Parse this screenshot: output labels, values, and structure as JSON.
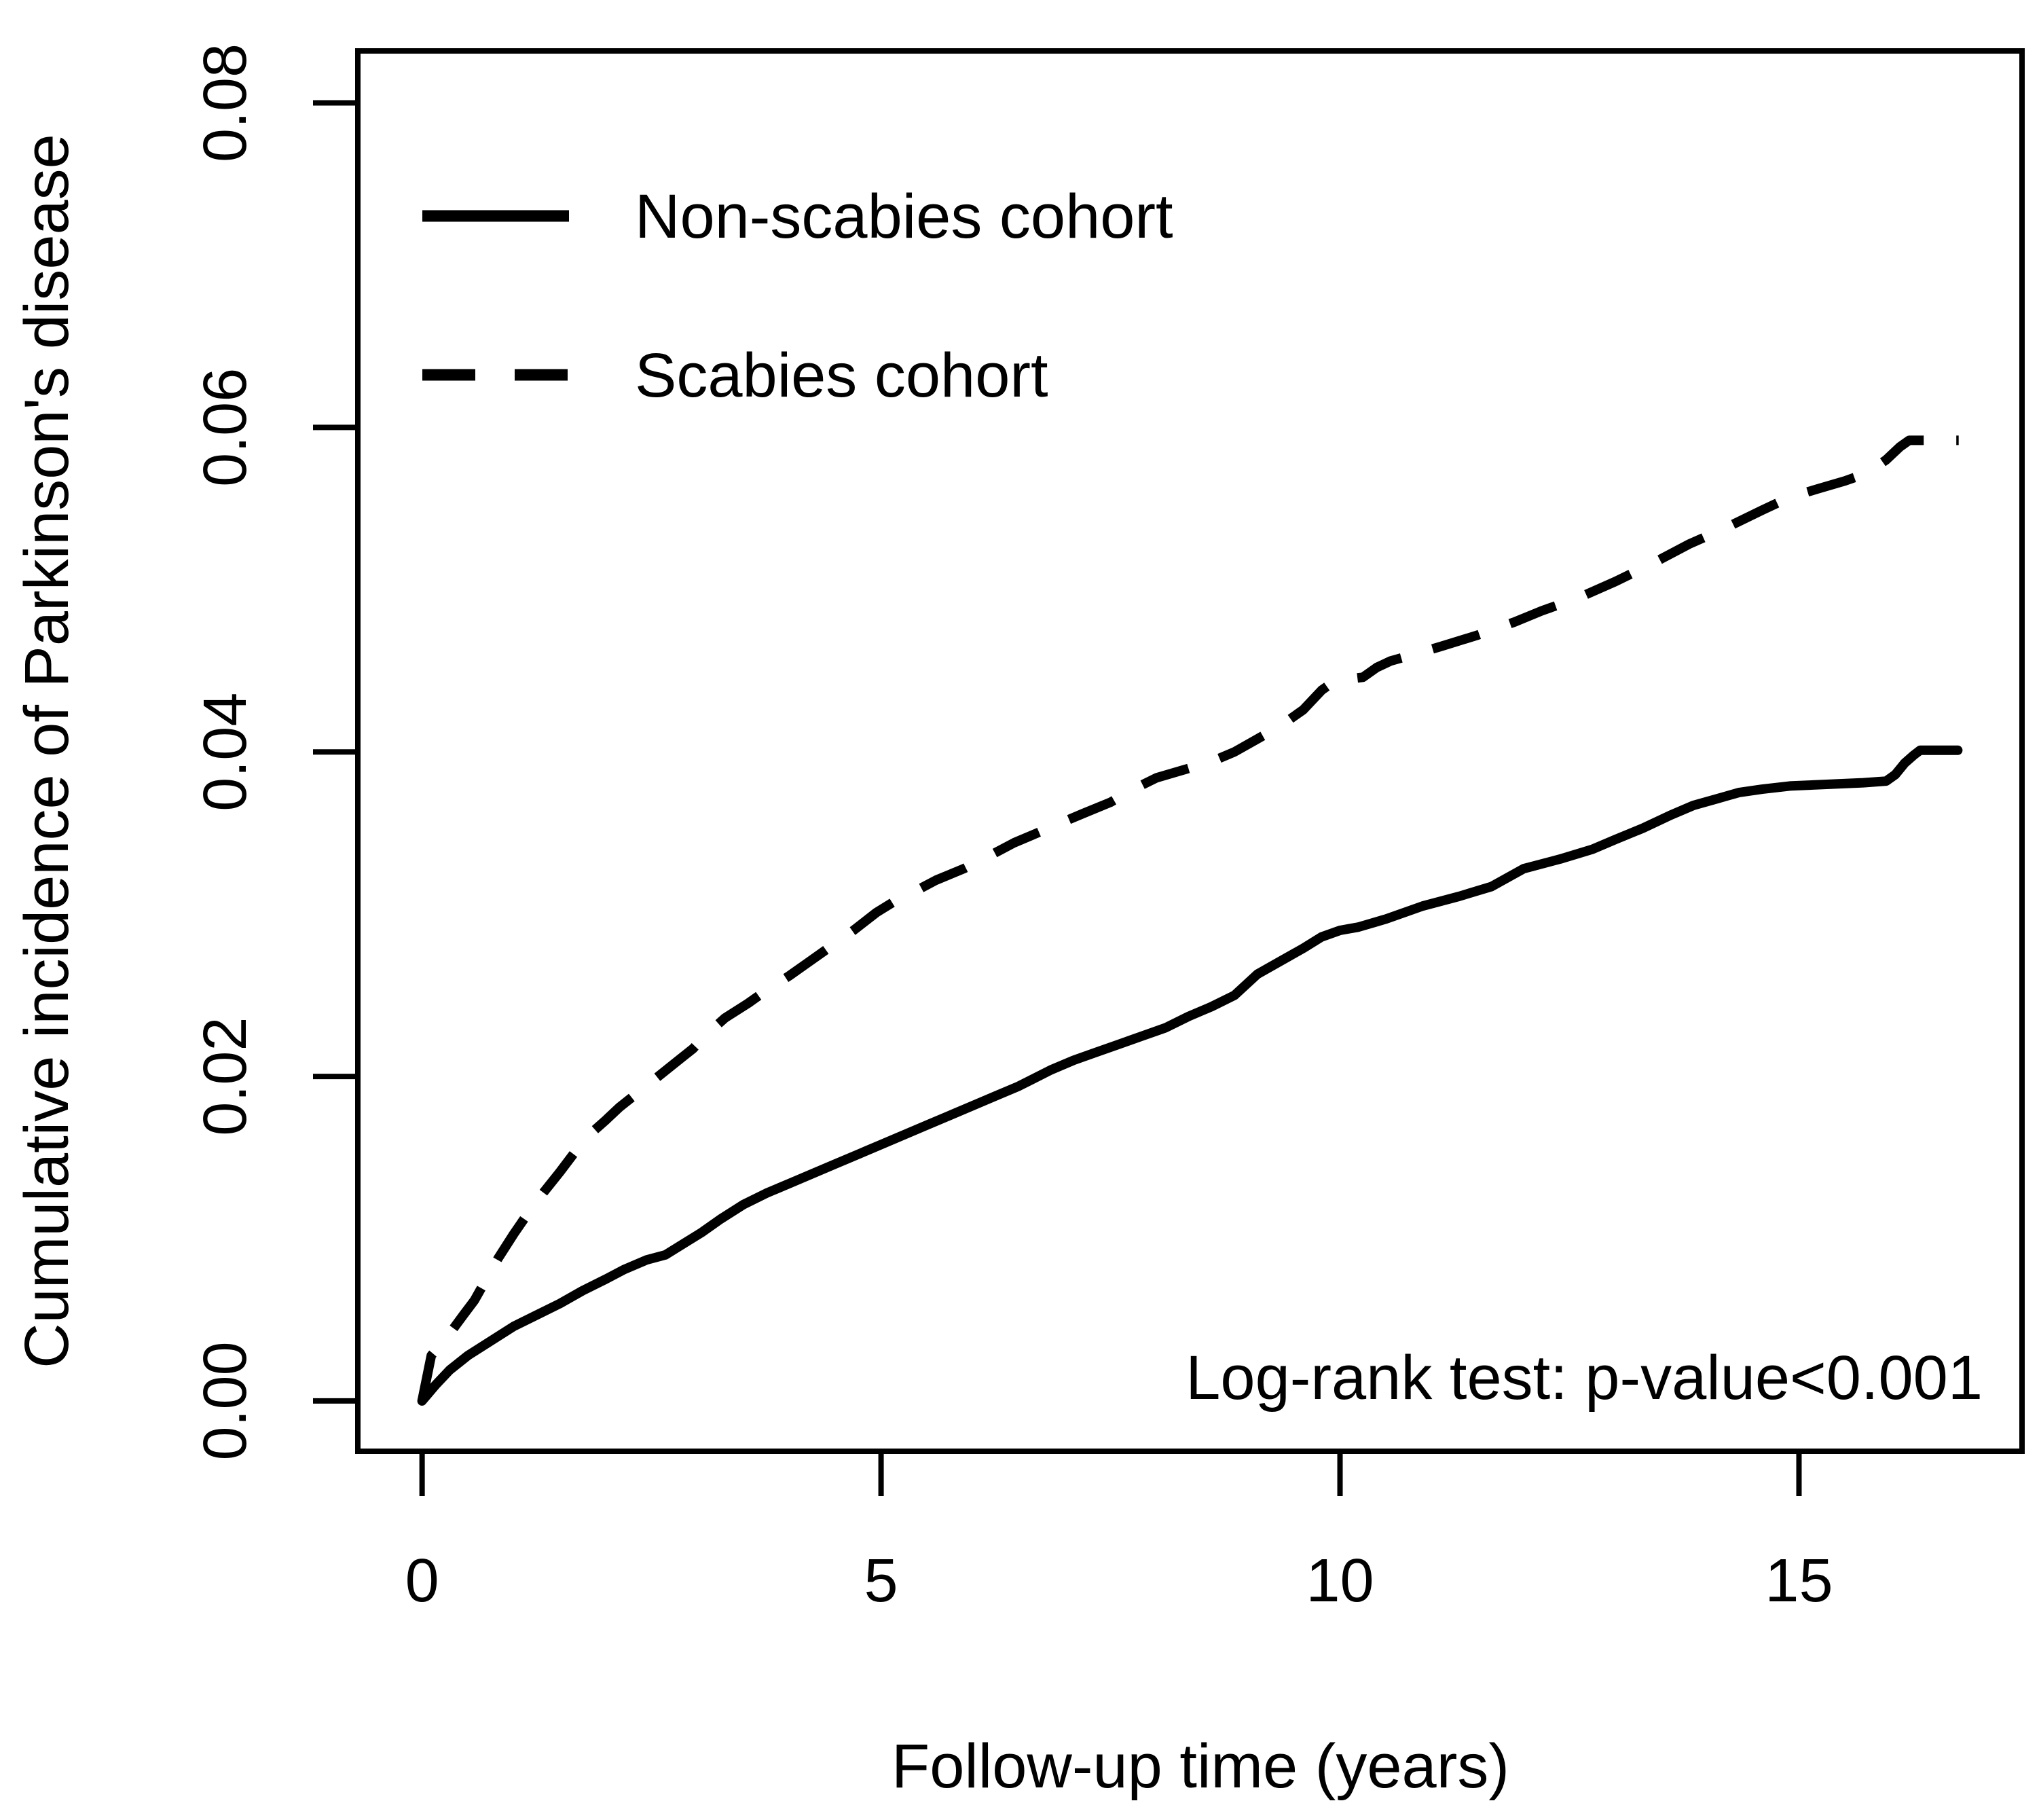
{
  "chart_data": {
    "type": "line",
    "title": "",
    "xlabel": "Follow-up time (years)",
    "ylabel": "Cumulative incidence of Parkinson's disease",
    "annotation": "Log-rank test: p-value<0.001",
    "xlim": [
      -0.7,
      17.43
    ],
    "ylim": [
      -0.0031,
      0.0832
    ],
    "x_ticks": [
      0,
      5,
      10,
      15
    ],
    "y_ticks": [
      "0.00",
      "0.02",
      "0.04",
      "0.06",
      "0.08"
    ],
    "grid": false,
    "legend_position": "top-left-inside",
    "line_color": "#000000",
    "legend": [
      {
        "label": "Non-scabies cohort",
        "style": "solid"
      },
      {
        "label": "Scabies cohort",
        "style": "dashed"
      }
    ],
    "series": [
      {
        "name": "Non-scabies cohort",
        "style": "solid",
        "points": [
          [
            0,
            0
          ],
          [
            0.15,
            0.001
          ],
          [
            0.3,
            0.0019
          ],
          [
            0.5,
            0.0028
          ],
          [
            0.75,
            0.0037
          ],
          [
            1.0,
            0.0046
          ],
          [
            1.25,
            0.0053
          ],
          [
            1.5,
            0.006
          ],
          [
            1.75,
            0.0068
          ],
          [
            2.0,
            0.0075
          ],
          [
            2.2,
            0.0081
          ],
          [
            2.45,
            0.0087
          ],
          [
            2.65,
            0.009
          ],
          [
            2.85,
            0.0097
          ],
          [
            3.05,
            0.0104
          ],
          [
            3.25,
            0.0112
          ],
          [
            3.5,
            0.0121
          ],
          [
            3.75,
            0.0128
          ],
          [
            4.0,
            0.0134
          ],
          [
            4.25,
            0.014
          ],
          [
            4.5,
            0.0146
          ],
          [
            4.75,
            0.0152
          ],
          [
            5.0,
            0.0158
          ],
          [
            5.25,
            0.0164
          ],
          [
            5.5,
            0.017
          ],
          [
            5.75,
            0.0176
          ],
          [
            6.0,
            0.0182
          ],
          [
            6.25,
            0.0188
          ],
          [
            6.5,
            0.0194
          ],
          [
            6.85,
            0.0204
          ],
          [
            7.1,
            0.021
          ],
          [
            7.35,
            0.0215
          ],
          [
            7.6,
            0.022
          ],
          [
            7.85,
            0.0225
          ],
          [
            8.1,
            0.023
          ],
          [
            8.35,
            0.0237
          ],
          [
            8.6,
            0.0243
          ],
          [
            8.85,
            0.025
          ],
          [
            9.1,
            0.0263
          ],
          [
            9.35,
            0.0271
          ],
          [
            9.6,
            0.0279
          ],
          [
            9.8,
            0.0286
          ],
          [
            10.0,
            0.029
          ],
          [
            10.2,
            0.0292
          ],
          [
            10.5,
            0.0297
          ],
          [
            10.9,
            0.0305
          ],
          [
            11.3,
            0.0311
          ],
          [
            11.65,
            0.0317
          ],
          [
            12.0,
            0.0328
          ],
          [
            12.4,
            0.0334
          ],
          [
            12.75,
            0.034
          ],
          [
            13.0,
            0.0346
          ],
          [
            13.3,
            0.0353
          ],
          [
            13.6,
            0.0361
          ],
          [
            13.85,
            0.0367
          ],
          [
            14.1,
            0.0371
          ],
          [
            14.35,
            0.0375
          ],
          [
            14.6,
            0.0377
          ],
          [
            14.9,
            0.0379
          ],
          [
            15.3,
            0.038
          ],
          [
            15.7,
            0.0381
          ],
          [
            15.95,
            0.0382
          ],
          [
            16.05,
            0.0386
          ],
          [
            16.15,
            0.0393
          ],
          [
            16.25,
            0.0398
          ],
          [
            16.32,
            0.0401
          ],
          [
            16.73,
            0.0401
          ]
        ]
      },
      {
        "name": "Scabies cohort",
        "style": "dashed",
        "points": [
          [
            0,
            0
          ],
          [
            0.1,
            0.0028
          ],
          [
            0.22,
            0.0036
          ],
          [
            0.32,
            0.0043
          ],
          [
            0.45,
            0.0053
          ],
          [
            0.57,
            0.0062
          ],
          [
            0.7,
            0.0075
          ],
          [
            0.83,
            0.0088
          ],
          [
            1.0,
            0.0103
          ],
          [
            1.17,
            0.0117
          ],
          [
            1.33,
            0.0129
          ],
          [
            1.5,
            0.0141
          ],
          [
            1.66,
            0.0153
          ],
          [
            1.82,
            0.0164
          ],
          [
            2.0,
            0.0173
          ],
          [
            2.15,
            0.0181
          ],
          [
            2.35,
            0.019
          ],
          [
            2.55,
            0.0199
          ],
          [
            2.75,
            0.0208
          ],
          [
            2.95,
            0.0217
          ],
          [
            3.1,
            0.0226
          ],
          [
            3.3,
            0.0236
          ],
          [
            3.55,
            0.0245
          ],
          [
            3.75,
            0.0253
          ],
          [
            4.0,
            0.0262
          ],
          [
            4.2,
            0.027
          ],
          [
            4.45,
            0.028
          ],
          [
            4.7,
            0.029
          ],
          [
            4.95,
            0.0301
          ],
          [
            5.15,
            0.0308
          ],
          [
            5.4,
            0.0315
          ],
          [
            5.6,
            0.0321
          ],
          [
            5.9,
            0.0328
          ],
          [
            6.15,
            0.0335
          ],
          [
            6.45,
            0.0344
          ],
          [
            6.7,
            0.035
          ],
          [
            6.95,
            0.0356
          ],
          [
            7.2,
            0.0362
          ],
          [
            7.5,
            0.0369
          ],
          [
            7.75,
            0.0377
          ],
          [
            8.0,
            0.0384
          ],
          [
            8.3,
            0.0389
          ],
          [
            8.6,
            0.0394
          ],
          [
            8.85,
            0.04
          ],
          [
            9.1,
            0.0408
          ],
          [
            9.35,
            0.0416
          ],
          [
            9.6,
            0.0426
          ],
          [
            9.8,
            0.0438
          ],
          [
            9.95,
            0.0444
          ],
          [
            10.25,
            0.0446
          ],
          [
            10.4,
            0.0452
          ],
          [
            10.55,
            0.0456
          ],
          [
            10.8,
            0.046
          ],
          [
            11.1,
            0.0465
          ],
          [
            11.5,
            0.0472
          ],
          [
            11.9,
            0.048
          ],
          [
            12.2,
            0.0487
          ],
          [
            12.6,
            0.0495
          ],
          [
            13.0,
            0.0505
          ],
          [
            13.4,
            0.0516
          ],
          [
            13.8,
            0.0528
          ],
          [
            14.2,
            0.0538
          ],
          [
            14.6,
            0.0549
          ],
          [
            14.9,
            0.0557
          ],
          [
            15.2,
            0.0562
          ],
          [
            15.5,
            0.0567
          ],
          [
            15.75,
            0.0572
          ],
          [
            15.95,
            0.058
          ],
          [
            16.1,
            0.0588
          ],
          [
            16.2,
            0.0592
          ],
          [
            16.74,
            0.0592
          ]
        ]
      }
    ]
  }
}
